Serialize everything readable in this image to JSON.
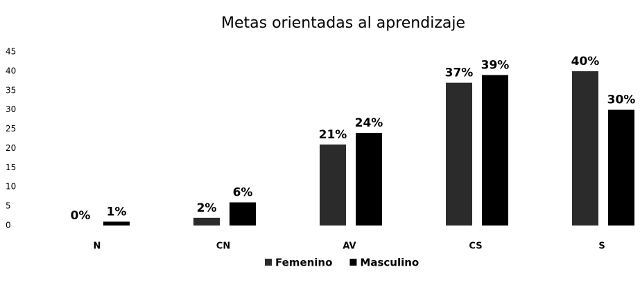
{
  "chart_data": {
    "type": "bar",
    "title": "Metas orientadas al aprendizaje",
    "categories": [
      "N",
      "CN",
      "AV",
      "CS",
      "S"
    ],
    "series": [
      {
        "name": "Femenino",
        "color": "#2b2b2b",
        "values": [
          0,
          2,
          21,
          37,
          40
        ],
        "value_labels": [
          "0%",
          "2%",
          "21%",
          "37%",
          "40%"
        ]
      },
      {
        "name": "Masculino",
        "color": "#000000",
        "values": [
          1,
          6,
          24,
          39,
          30
        ],
        "value_labels": [
          "1%",
          "6%",
          "24%",
          "39%",
          "30%"
        ]
      }
    ],
    "ylim": [
      0,
      45
    ],
    "yticks": [
      0,
      5,
      10,
      15,
      20,
      25,
      30,
      35,
      40,
      45
    ],
    "grid": false,
    "legend": "bottom"
  }
}
